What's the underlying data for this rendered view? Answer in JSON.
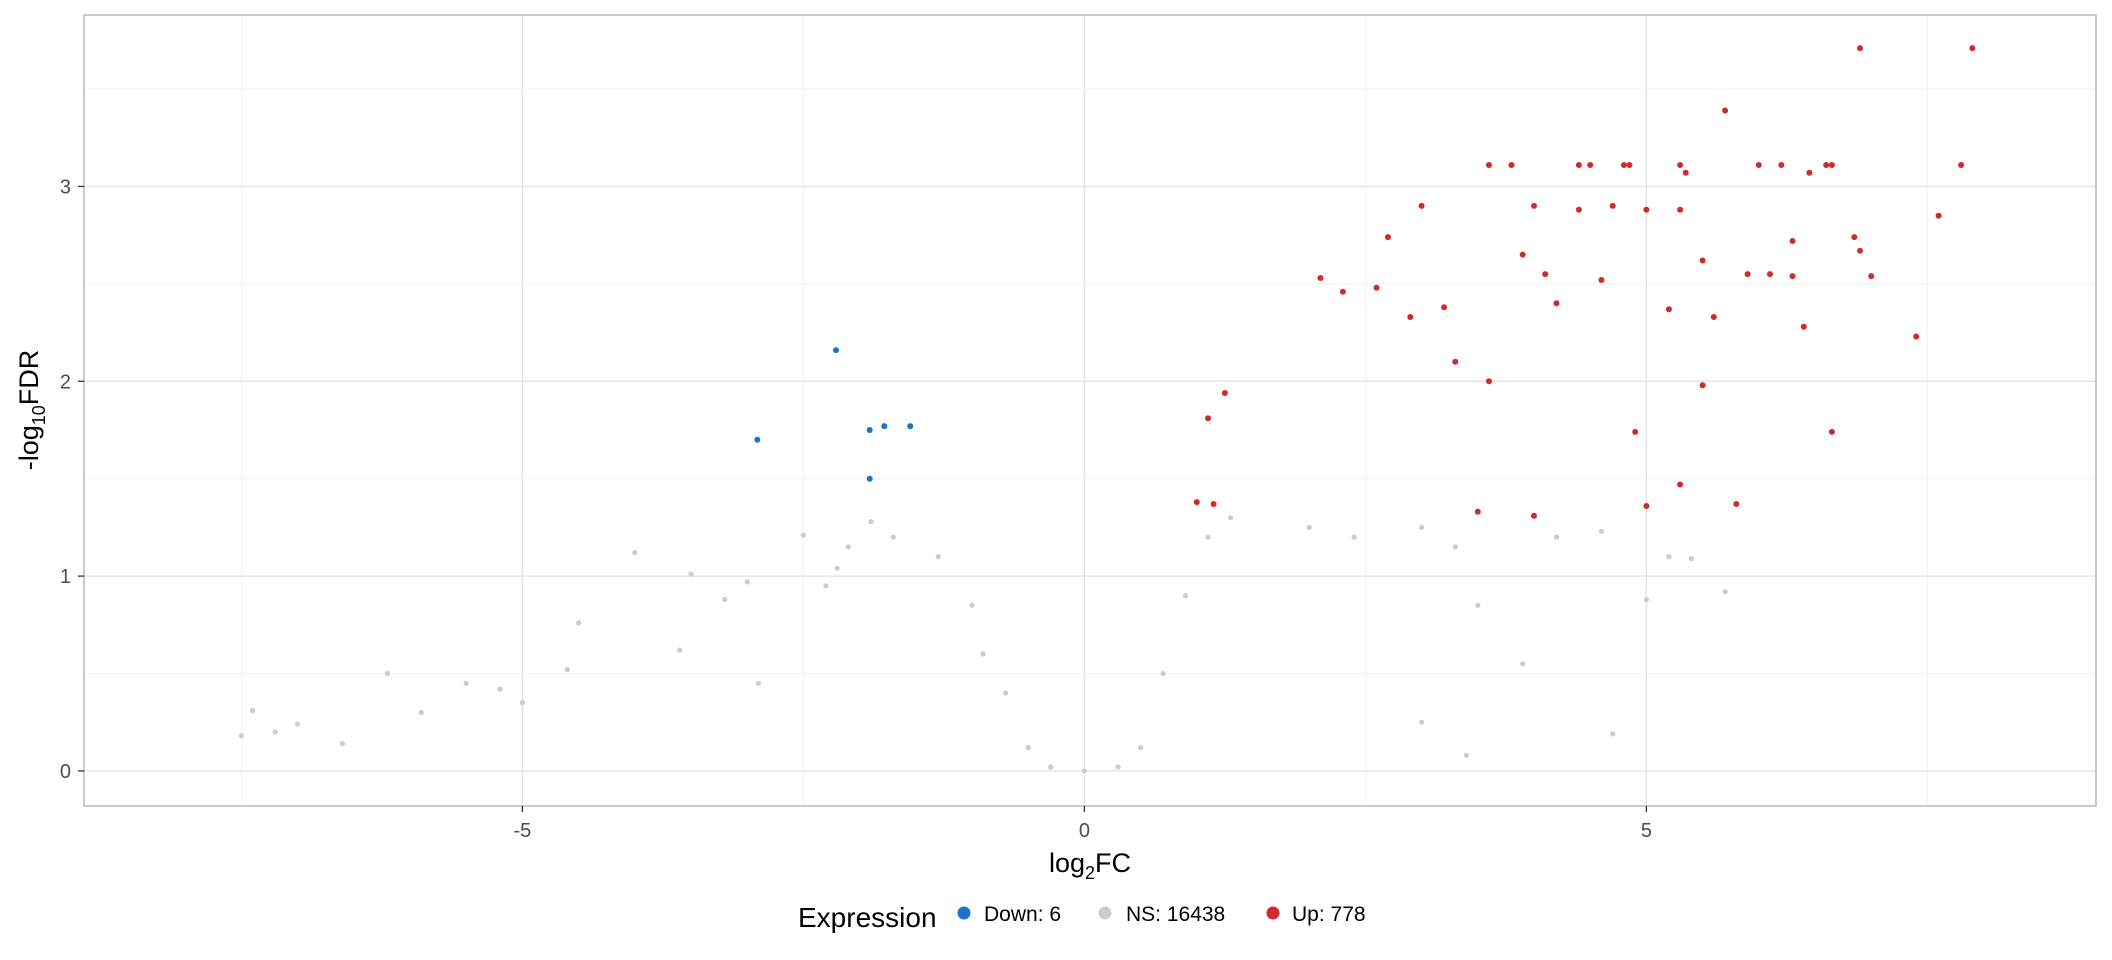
{
  "chart_data": {
    "type": "scatter",
    "title": "",
    "xlabel": {
      "prefix": "log",
      "sub": "2",
      "suffix": "FC"
    },
    "ylabel": {
      "prefix": "-log",
      "sub": "10",
      "suffix": "FDR"
    },
    "xlim": [
      -8.9,
      9.0
    ],
    "ylim": [
      -0.18,
      3.88
    ],
    "x_ticks": [
      -5,
      0,
      5
    ],
    "x_tick_labels": [
      "-5",
      "0",
      "5"
    ],
    "y_ticks": [
      0,
      1,
      2,
      3
    ],
    "y_tick_labels": [
      "0",
      "1",
      "2",
      "3"
    ],
    "grid": true,
    "legend": {
      "position": "bottom",
      "title": "Expression",
      "entries": [
        {
          "label": "Down: 6",
          "color": "#1a74c9"
        },
        {
          "label": "NS: 16438",
          "color": "#cccccc"
        },
        {
          "label": "Up: 778",
          "color": "#d12a2a"
        }
      ]
    },
    "series": [
      {
        "name": "Down",
        "color": "#1a74c9",
        "count": 6,
        "points": [
          [
            -2.91,
            1.7
          ],
          [
            -2.21,
            2.16
          ],
          [
            -1.91,
            1.75
          ],
          [
            -1.78,
            1.77
          ],
          [
            -1.55,
            1.77
          ],
          [
            -1.91,
            1.5
          ]
        ]
      },
      {
        "name": "NS",
        "color": "#cccccc",
        "count": 16438,
        "points": [
          [
            -7.5,
            0.18
          ],
          [
            -7.4,
            0.31
          ],
          [
            -7.2,
            0.2
          ],
          [
            -7.0,
            0.24
          ],
          [
            -6.6,
            0.14
          ],
          [
            -6.2,
            0.5
          ],
          [
            -5.9,
            0.3
          ],
          [
            -5.5,
            0.45
          ],
          [
            -5.2,
            0.42
          ],
          [
            -5.0,
            0.35
          ],
          [
            -4.6,
            0.52
          ],
          [
            -4.5,
            0.76
          ],
          [
            -4.0,
            1.12
          ],
          [
            -3.6,
            0.62
          ],
          [
            -3.5,
            1.01
          ],
          [
            -3.2,
            0.88
          ],
          [
            -3.0,
            0.97
          ],
          [
            -2.9,
            0.45
          ],
          [
            -2.5,
            1.21
          ],
          [
            -2.3,
            0.95
          ],
          [
            -2.2,
            1.04
          ],
          [
            -2.1,
            1.15
          ],
          [
            -1.9,
            1.28
          ],
          [
            -1.7,
            1.2
          ],
          [
            -1.3,
            1.1
          ],
          [
            -1.0,
            0.85
          ],
          [
            -0.9,
            0.6
          ],
          [
            -0.7,
            0.4
          ],
          [
            -0.5,
            0.12
          ],
          [
            -0.3,
            0.02
          ],
          [
            0,
            0
          ],
          [
            0.3,
            0.02
          ],
          [
            0.5,
            0.12
          ],
          [
            0.7,
            0.5
          ],
          [
            0.9,
            0.9
          ],
          [
            1.1,
            1.2
          ],
          [
            1.3,
            1.3
          ],
          [
            2.0,
            1.25
          ],
          [
            2.4,
            1.2
          ],
          [
            3.0,
            1.25
          ],
          [
            3.3,
            1.15
          ],
          [
            3.5,
            0.85
          ],
          [
            3.9,
            0.55
          ],
          [
            4.2,
            1.2
          ],
          [
            4.6,
            1.23
          ],
          [
            5.0,
            0.88
          ],
          [
            5.2,
            1.1
          ],
          [
            5.4,
            1.09
          ],
          [
            5.7,
            0.92
          ],
          [
            4.7,
            0.19
          ],
          [
            3.4,
            0.08
          ],
          [
            3.0,
            0.25
          ]
        ]
      },
      {
        "name": "Up",
        "color": "#d12a2a",
        "count": 778,
        "points": [
          [
            6.9,
            3.71
          ],
          [
            7.9,
            3.71
          ],
          [
            5.7,
            3.39
          ],
          [
            3.6,
            3.11
          ],
          [
            3.8,
            3.11
          ],
          [
            4.4,
            3.11
          ],
          [
            4.5,
            3.11
          ],
          [
            4.8,
            3.11
          ],
          [
            4.85,
            3.11
          ],
          [
            5.3,
            3.11
          ],
          [
            5.35,
            3.07
          ],
          [
            6.0,
            3.11
          ],
          [
            6.2,
            3.11
          ],
          [
            6.45,
            3.07
          ],
          [
            6.6,
            3.11
          ],
          [
            6.65,
            3.11
          ],
          [
            7.8,
            3.11
          ],
          [
            7.6,
            2.85
          ],
          [
            3.0,
            2.9
          ],
          [
            4.0,
            2.9
          ],
          [
            4.4,
            2.88
          ],
          [
            4.7,
            2.9
          ],
          [
            5.0,
            2.88
          ],
          [
            5.3,
            2.88
          ],
          [
            2.7,
            2.74
          ],
          [
            6.3,
            2.72
          ],
          [
            6.85,
            2.74
          ],
          [
            6.9,
            2.67
          ],
          [
            7.0,
            2.54
          ],
          [
            7.4,
            2.23
          ],
          [
            6.65,
            1.74
          ],
          [
            5.8,
            1.37
          ],
          [
            5.5,
            1.98
          ],
          [
            5.3,
            1.47
          ],
          [
            5.0,
            1.36
          ],
          [
            4.9,
            1.74
          ],
          [
            4.0,
            1.31
          ],
          [
            3.5,
            1.33
          ],
          [
            1.1,
            1.81
          ],
          [
            1.15,
            1.37
          ],
          [
            1.25,
            1.94
          ],
          [
            1.0,
            1.38
          ],
          [
            2.1,
            2.53
          ],
          [
            2.3,
            2.46
          ],
          [
            2.6,
            2.48
          ],
          [
            3.9,
            2.65
          ],
          [
            4.1,
            2.55
          ],
          [
            4.2,
            2.4
          ],
          [
            4.6,
            2.52
          ],
          [
            5.5,
            2.62
          ],
          [
            5.9,
            2.55
          ],
          [
            6.1,
            2.55
          ],
          [
            6.3,
            2.54
          ],
          [
            6.4,
            2.28
          ],
          [
            5.6,
            2.33
          ],
          [
            5.2,
            2.37
          ],
          [
            3.2,
            2.38
          ],
          [
            2.9,
            2.33
          ],
          [
            3.3,
            2.1
          ],
          [
            3.6,
            2.0
          ]
        ]
      }
    ]
  }
}
